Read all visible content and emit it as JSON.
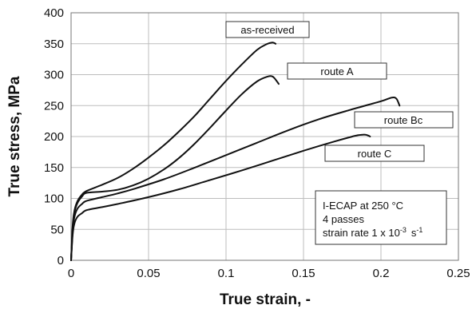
{
  "chart_data": {
    "type": "line",
    "xlabel": "True strain, -",
    "ylabel": "True stress, MPa",
    "xlim": [
      0,
      0.25
    ],
    "ylim": [
      0,
      400
    ],
    "x_ticks": [
      "0",
      "0.05",
      "0.1",
      "0.15",
      "0.2",
      "0.25"
    ],
    "y_ticks": [
      "0",
      "50",
      "100",
      "150",
      "200",
      "250",
      "300",
      "350",
      "400"
    ],
    "grid": "major gridlines on both axes",
    "line_color": "#111111",
    "series": [
      {
        "name": "as-received",
        "x": [
          0,
          0.001,
          0.002,
          0.004,
          0.007,
          0.01,
          0.02,
          0.03,
          0.04,
          0.05,
          0.06,
          0.07,
          0.08,
          0.09,
          0.1,
          0.11,
          0.12,
          0.126,
          0.13,
          0.132
        ],
        "y": [
          0,
          55,
          78,
          95,
          106,
          112,
          122,
          133,
          148,
          166,
          186,
          209,
          234,
          262,
          290,
          316,
          340,
          349,
          352,
          350
        ]
      },
      {
        "name": "route A",
        "x": [
          0,
          0.001,
          0.002,
          0.004,
          0.007,
          0.01,
          0.02,
          0.03,
          0.04,
          0.05,
          0.06,
          0.07,
          0.08,
          0.09,
          0.1,
          0.11,
          0.12,
          0.127,
          0.13,
          0.132,
          0.134
        ],
        "y": [
          0,
          50,
          75,
          92,
          103,
          109,
          111,
          114,
          121,
          132,
          147,
          166,
          189,
          215,
          242,
          268,
          289,
          297,
          297,
          292,
          285
        ]
      },
      {
        "name": "route Bc",
        "x": [
          0,
          0.001,
          0.002,
          0.004,
          0.007,
          0.01,
          0.02,
          0.03,
          0.04,
          0.06,
          0.08,
          0.1,
          0.12,
          0.14,
          0.16,
          0.18,
          0.2,
          0.207,
          0.21,
          0.212
        ],
        "y": [
          0,
          45,
          68,
          83,
          91,
          96,
          102,
          108,
          115,
          131,
          150,
          170,
          190,
          210,
          228,
          243,
          257,
          263,
          261,
          250
        ]
      },
      {
        "name": "route C",
        "x": [
          0,
          0.001,
          0.002,
          0.004,
          0.007,
          0.01,
          0.02,
          0.03,
          0.05,
          0.07,
          0.09,
          0.11,
          0.13,
          0.15,
          0.17,
          0.18,
          0.185,
          0.19,
          0.193
        ],
        "y": [
          0,
          40,
          58,
          70,
          76,
          81,
          86,
          91,
          102,
          115,
          130,
          145,
          161,
          177,
          192,
          199,
          202,
          203,
          200
        ]
      }
    ],
    "callouts": [
      "as-received",
      "route A",
      "route Bc",
      "route C"
    ],
    "note": {
      "line1": "I-ECAP at 250 °C",
      "line2": "4 passes",
      "line3_prefix": "strain rate 1 x 10",
      "line3_exponent": "-3",
      "line3_unit": "s",
      "line3_unit_exponent": "-1"
    }
  }
}
